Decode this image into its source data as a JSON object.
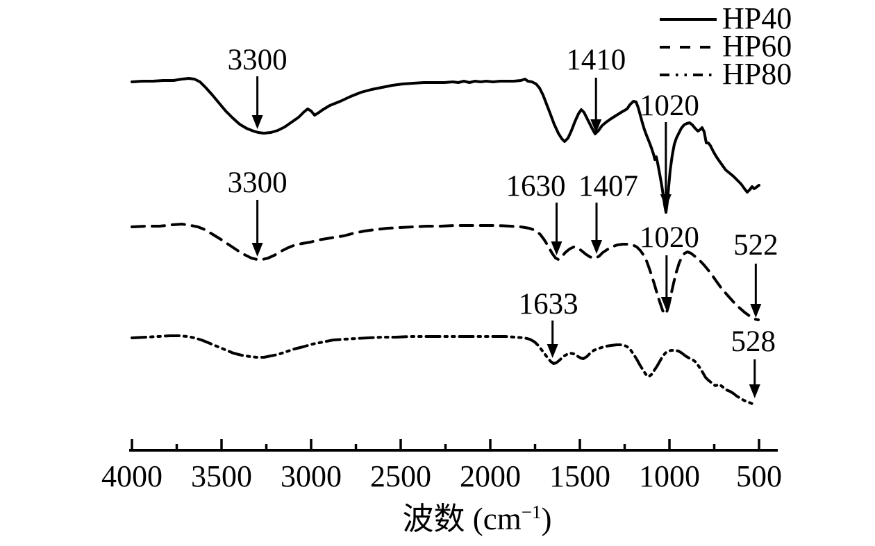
{
  "figure": {
    "background_color": "#ffffff",
    "line_color": "#000000",
    "text_color": "#000000"
  },
  "chart_data": {
    "type": "line",
    "title": "",
    "xlabel": {
      "text": "波数 (cm⁻¹)",
      "base": "波数 (cm",
      "exponent": "−1",
      "close": ")"
    },
    "ylabel": "",
    "x_axis": {
      "tick_labels": [
        "4000",
        "3500",
        "3000",
        "2500",
        "2000",
        "1500",
        "1000",
        "500"
      ],
      "tick_values": [
        4000,
        3500,
        3000,
        2500,
        2000,
        1500,
        1000,
        500
      ],
      "minor_tick_interval": 250,
      "direction": "decreasing-left-to-right",
      "range": [
        4000,
        400
      ],
      "grid": "off"
    },
    "legend": {
      "position": "top-right",
      "entries": [
        "HP40",
        "HP60",
        "HP80"
      ]
    },
    "series": [
      {
        "name": "HP40",
        "line_style": "solid",
        "color": "#000000",
        "description": "FTIR spectrum, offset top; broad O-H band at 3300, bands at 1410, sharp deep band at 1020",
        "annotated_peaks": [
          {
            "label": "3300",
            "wavenumber": 3300
          },
          {
            "label": "1410",
            "wavenumber": 1410
          },
          {
            "label": "1020",
            "wavenumber": 1020
          }
        ]
      },
      {
        "name": "HP60",
        "line_style": "dashed",
        "color": "#000000",
        "description": "FTIR spectrum, offset middle; bands at 3300, 1630, 1407, 1020 and 522",
        "annotated_peaks": [
          {
            "label": "3300",
            "wavenumber": 3300
          },
          {
            "label": "1630",
            "wavenumber": 1630
          },
          {
            "label": "1407",
            "wavenumber": 1407
          },
          {
            "label": "1020",
            "wavenumber": 1020
          },
          {
            "label": "522",
            "wavenumber": 522
          }
        ]
      },
      {
        "name": "HP80",
        "line_style": "dash-dot-dot",
        "color": "#000000",
        "description": "FTIR spectrum, offset bottom; bands at 1633 and 528",
        "annotated_peaks": [
          {
            "label": "1633",
            "wavenumber": 1633
          },
          {
            "label": "528",
            "wavenumber": 528
          }
        ]
      }
    ]
  }
}
